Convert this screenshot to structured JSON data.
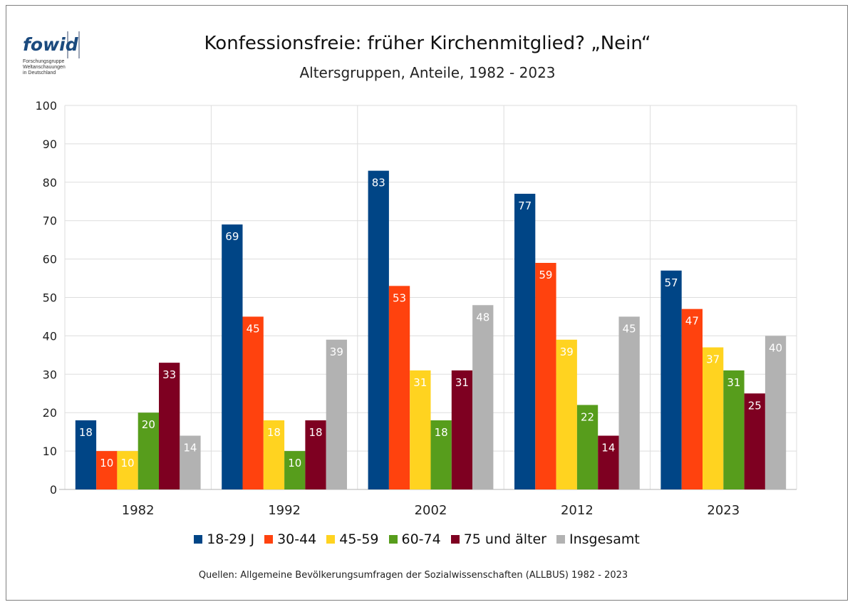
{
  "logo": {
    "text_fo": "fo",
    "text_wid": "wid",
    "lines": [
      "Forschungsgruppe",
      "Weltanschauungen",
      "in Deutschland"
    ]
  },
  "title": "Konfessionsfreie: früher Kirchenmitglied? „Nein“",
  "subtitle": "Altersgruppen, Anteile, 1982 - 2023",
  "source": "Quellen: Allgemeine Bevölkerungsumfragen der Sozialwissenschaften (ALLBUS) 1982 - 2023",
  "chart_data": {
    "type": "bar",
    "categories": [
      "1982",
      "1992",
      "2002",
      "2012",
      "2023"
    ],
    "series": [
      {
        "name": "18-29 J",
        "color": "#004586",
        "values": [
          18,
          69,
          83,
          77,
          57
        ]
      },
      {
        "name": "30-44",
        "color": "#ff420e",
        "values": [
          10,
          45,
          53,
          59,
          47
        ]
      },
      {
        "name": "45-59",
        "color": "#ffd320",
        "values": [
          10,
          18,
          31,
          39,
          37
        ]
      },
      {
        "name": "60-74",
        "color": "#579d1c",
        "values": [
          20,
          10,
          18,
          22,
          31
        ]
      },
      {
        "name": "75 und älter",
        "color": "#7e0021",
        "values": [
          33,
          18,
          31,
          14,
          25
        ]
      },
      {
        "name": "Insgesamt",
        "color": "#b2b2b2",
        "values": [
          14,
          39,
          48,
          45,
          40
        ]
      }
    ],
    "ylim": [
      0,
      100
    ],
    "yticks": [
      0,
      10,
      20,
      30,
      40,
      50,
      60,
      70,
      80,
      90,
      100
    ],
    "grid": true,
    "legend": "bottom",
    "data_labels": true
  }
}
